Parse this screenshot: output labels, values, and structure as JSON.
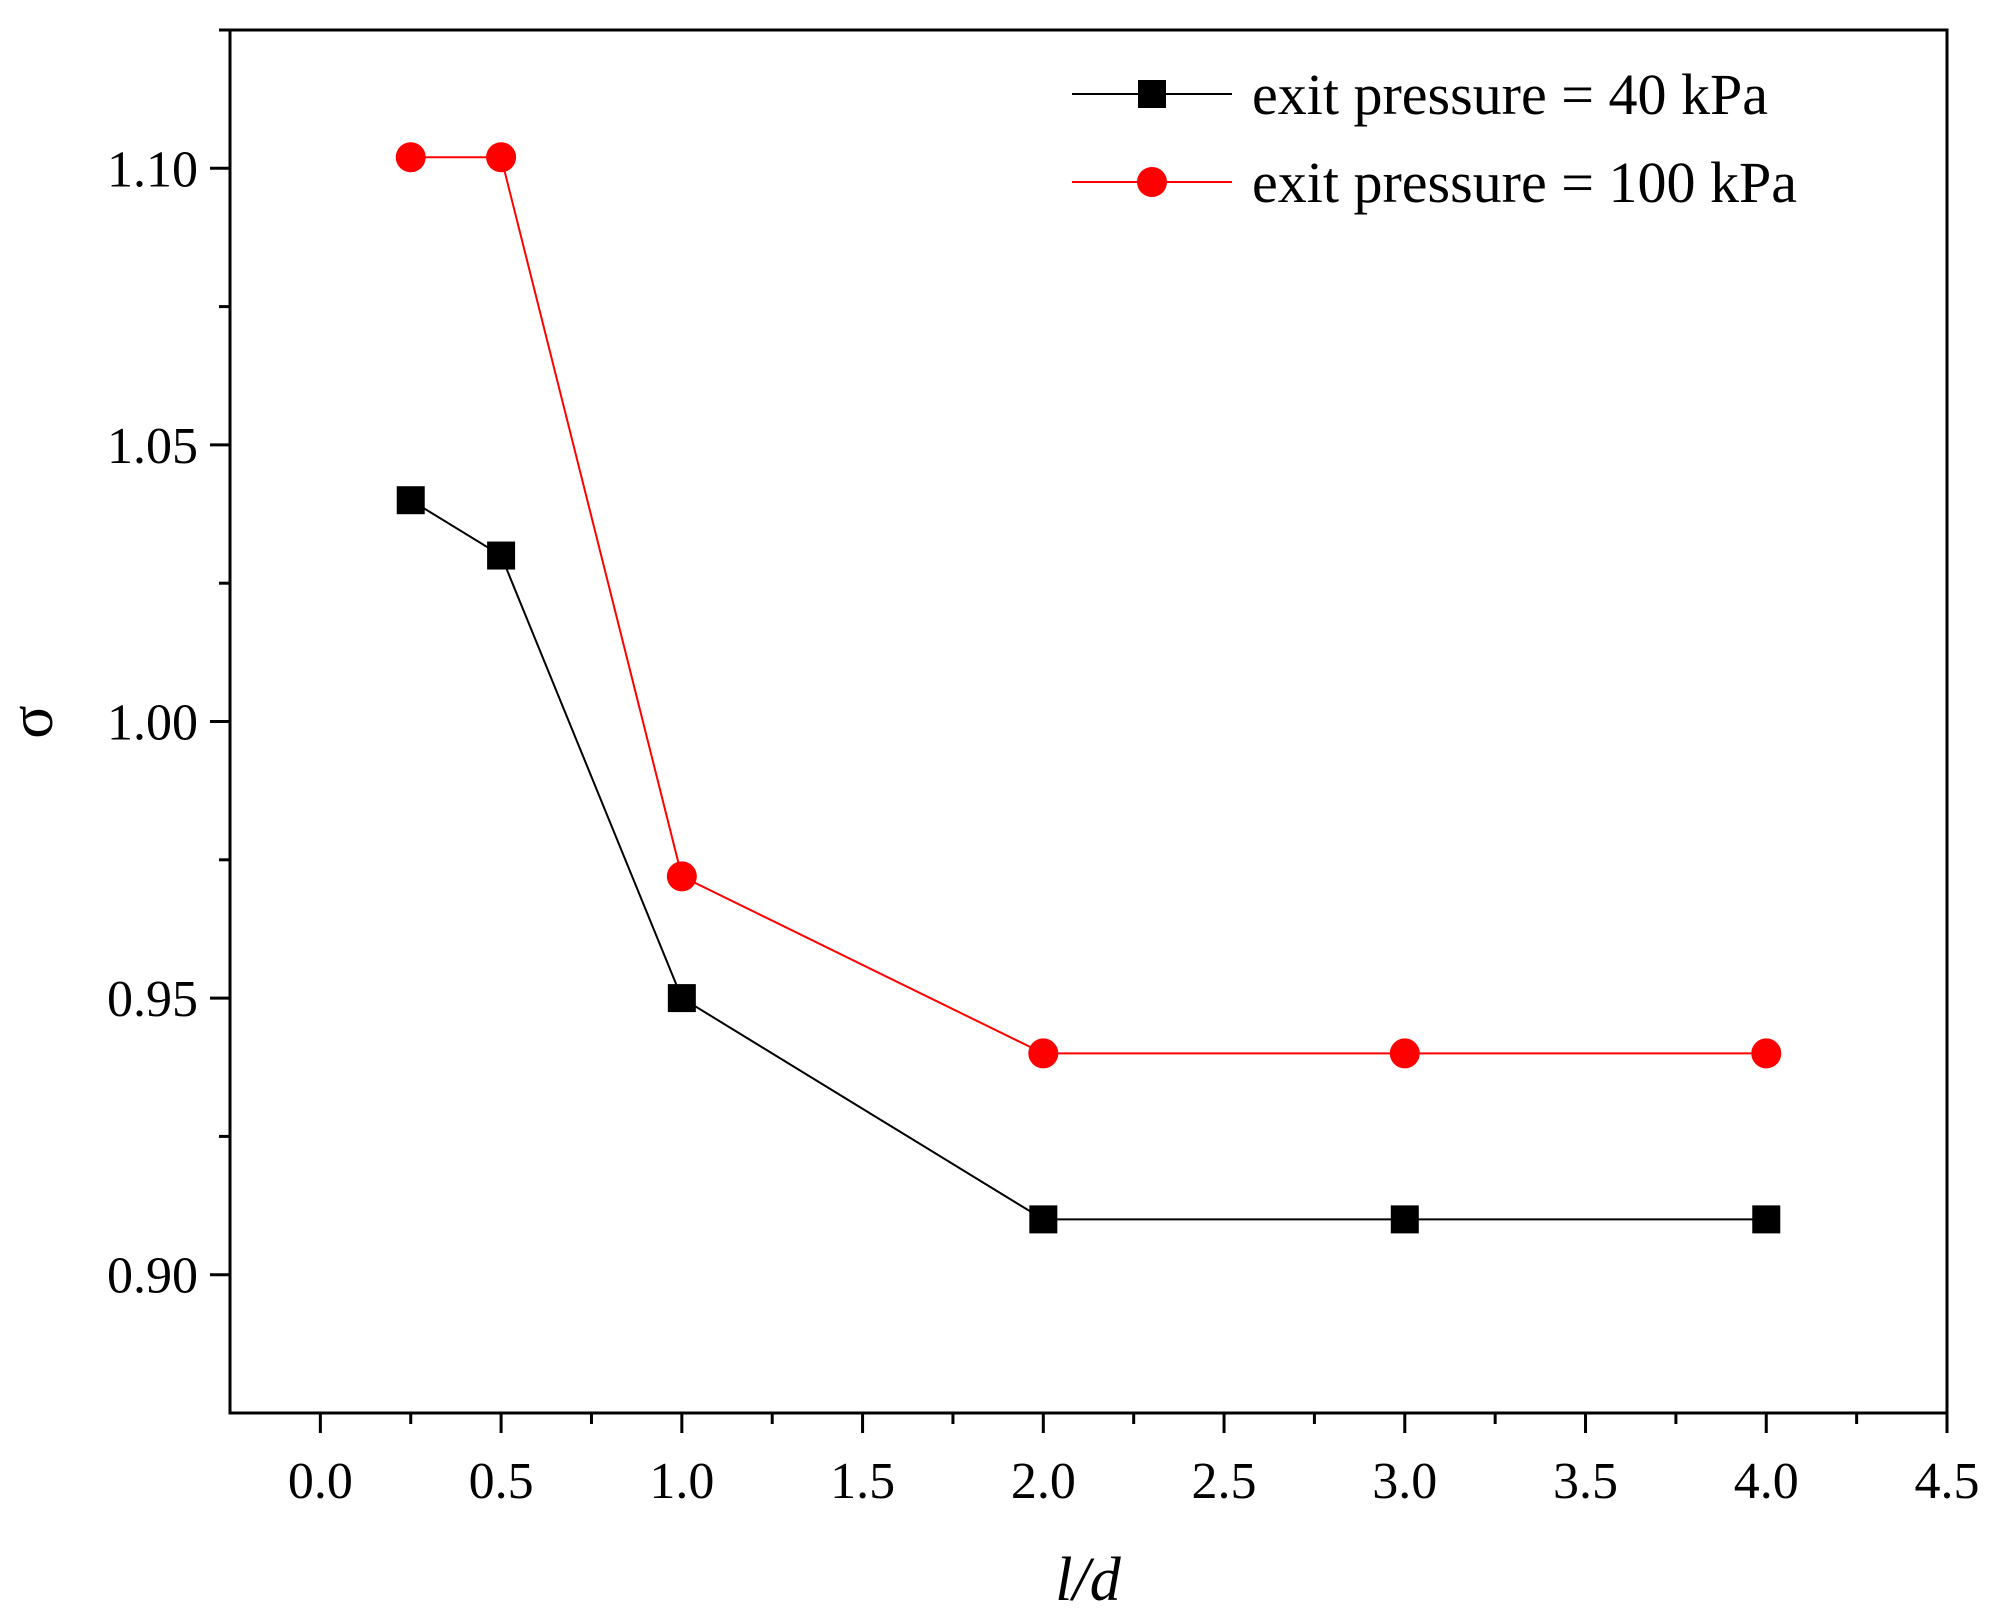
{
  "chart_data": {
    "type": "line",
    "title": "",
    "xlabel": "l/d",
    "ylabel": "σ",
    "xlim": [
      -0.25,
      4.5
    ],
    "ylim": [
      0.875,
      1.125
    ],
    "xticks": [
      0.0,
      0.5,
      1.0,
      1.5,
      2.0,
      2.5,
      3.0,
      3.5,
      4.0,
      4.5
    ],
    "xtick_labels": [
      "0.0",
      "0.5",
      "1.0",
      "1.5",
      "2.0",
      "2.5",
      "3.0",
      "3.5",
      "4.0",
      "4.5"
    ],
    "yticks": [
      0.9,
      0.95,
      1.0,
      1.05,
      1.1
    ],
    "ytick_labels": [
      "0.90",
      "0.95",
      "1.00",
      "1.05",
      "1.10"
    ],
    "grid": false,
    "legend_position": "top-right",
    "series": [
      {
        "name": "exit pressure = 40 kPa",
        "color": "#000000",
        "marker": "square",
        "x": [
          0.25,
          0.5,
          1.0,
          2.0,
          3.0,
          4.0
        ],
        "values": [
          1.04,
          1.03,
          0.95,
          0.91,
          0.91,
          0.91
        ]
      },
      {
        "name": "exit pressure = 100 kPa",
        "color": "#ff0000",
        "marker": "circle",
        "x": [
          0.25,
          0.5,
          1.0,
          2.0,
          3.0,
          4.0
        ],
        "values": [
          1.102,
          1.102,
          0.972,
          0.94,
          0.94,
          0.94
        ]
      }
    ]
  }
}
